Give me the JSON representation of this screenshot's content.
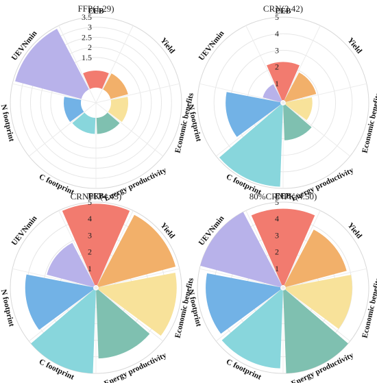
{
  "colors": {
    "EEB": "#f27b6f",
    "Yield": "#f2b06a",
    "Economic benefits": "#f8e29a",
    "Energy productivity": "#7fc0b0",
    "C footprint": "#88d6dc",
    "N footprint": "#72b2e6",
    "UEVNmin": "#b8b2ea"
  },
  "chart_data": [
    {
      "type": "radial-bar",
      "title": "FFP(1.29)",
      "categories": [
        "EEB",
        "Yield",
        "Economic benefits",
        "Energy productivity",
        "C footprint",
        "N footprint",
        "UEVNmin"
      ],
      "values": [
        0.85,
        0.9,
        0.85,
        0.8,
        0.8,
        0.85,
        3.4
      ],
      "rmax": 3.5,
      "ticks": [
        "1.5",
        "2",
        "2.5",
        "3",
        "3.5"
      ],
      "tick_values": [
        1.5,
        2,
        2.5,
        3,
        3.5
      ],
      "grid": true
    },
    {
      "type": "radial-bar",
      "title": "CRN(2.42)",
      "categories": [
        "EEB",
        "Yield",
        "Economic benefits",
        "Energy productivity",
        "C footprint",
        "N footprint",
        "UEVNmin"
      ],
      "values": [
        2.3,
        1.9,
        1.6,
        2.1,
        4.9,
        3.3,
        1.1
      ],
      "rmax": 5,
      "ticks": [
        "1",
        "2",
        "3",
        "4",
        "5"
      ],
      "tick_values": [
        1,
        2,
        3,
        4,
        5
      ],
      "grid": true
    },
    {
      "type": "radial-bar",
      "title": "CRNPK(4.43)",
      "categories": [
        "EEB",
        "Yield",
        "Economic benefits",
        "Energy productivity",
        "C footprint",
        "N footprint",
        "UEVNmin"
      ],
      "values": [
        4.9,
        4.8,
        4.7,
        4.1,
        5.0,
        4.1,
        2.9
      ],
      "rmax": 5,
      "ticks": [
        "1",
        "2",
        "3",
        "4",
        "5"
      ],
      "tick_values": [
        1,
        2,
        3,
        4,
        5
      ],
      "grid": true
    },
    {
      "type": "radial-bar",
      "title": "80%CRNPK(4.50)",
      "categories": [
        "EEB",
        "Yield",
        "Economic benefits",
        "Energy productivity",
        "C footprint",
        "N footprint",
        "UEVNmin"
      ],
      "values": [
        4.6,
        3.8,
        4.0,
        5.0,
        4.7,
        4.5,
        5.0
      ],
      "rmax": 5,
      "ticks": [
        "1",
        "2",
        "3",
        "4",
        "5"
      ],
      "tick_values": [
        1,
        2,
        3,
        4,
        5
      ],
      "grid": true
    }
  ]
}
